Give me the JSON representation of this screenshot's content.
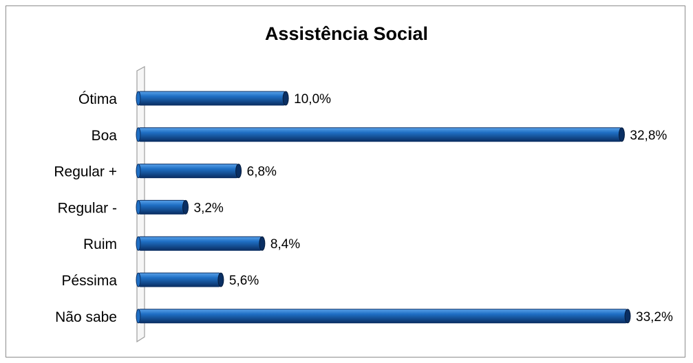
{
  "chart_data": {
    "type": "bar",
    "orientation": "horizontal",
    "style": "3d-cylinder",
    "title": "Assistência Social",
    "categories": [
      "Ótima",
      "Boa",
      "Regular +",
      "Regular -",
      "Ruim",
      "Péssima",
      "Não sabe"
    ],
    "values": [
      10.0,
      32.8,
      6.8,
      3.2,
      8.4,
      5.6,
      33.2
    ],
    "value_labels": [
      "10,0%",
      "32,8%",
      "6,8%",
      "3,2%",
      "8,4%",
      "5,6%",
      "33,2%"
    ],
    "xlim": [
      0,
      33.2
    ],
    "grid": false,
    "legend": "none",
    "colors": {
      "bar": "#1f6fc4",
      "bar_dark": "#0a2f63",
      "bar_light": "#5aa2ea",
      "wall": "#9e9e9e"
    }
  }
}
